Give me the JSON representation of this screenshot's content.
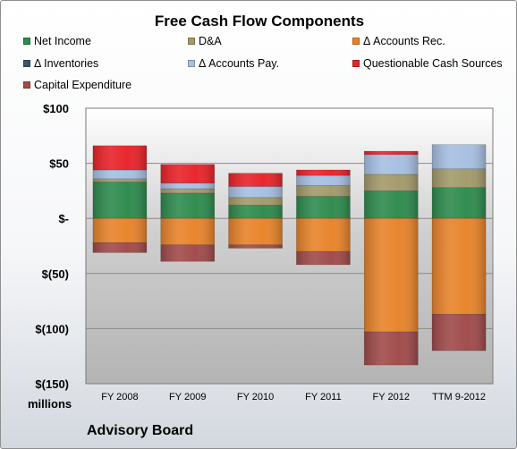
{
  "chart_data": {
    "type": "bar",
    "stacked": true,
    "title": "Free Cash Flow Components",
    "units_label": "millions",
    "watermark": "Advisory Board",
    "categories": [
      "FY 2008",
      "FY 2009",
      "FY 2010",
      "FY 2011",
      "FY 2012",
      "TTM 9-2012"
    ],
    "ylim": [
      -150,
      100
    ],
    "yticks": [
      100,
      50,
      0,
      -50,
      -100,
      -150
    ],
    "ytick_labels": [
      "$100",
      "$50",
      "$-",
      "$(50)",
      "$(100)",
      "$(150)"
    ],
    "grid": true,
    "legend_position": "top",
    "series": [
      {
        "name": "Net Income",
        "color": "#2e8b4e",
        "values": [
          33,
          23,
          12,
          20,
          25,
          28
        ]
      },
      {
        "name": "D&A",
        "color": "#a39a6b",
        "values": [
          3,
          4,
          7,
          10,
          15,
          17
        ]
      },
      {
        "name": "Δ Accounts Rec.",
        "color": "#e8832a",
        "values": [
          -22,
          -24,
          -24,
          -30,
          -103,
          -87
        ]
      },
      {
        "name": "Δ Inventories",
        "color": "#3a5574",
        "values": [
          0,
          0,
          0,
          0,
          0,
          0
        ]
      },
      {
        "name": "Δ Accounts Pay.",
        "color": "#a6bfe2",
        "values": [
          8,
          5,
          10,
          9,
          18,
          22
        ]
      },
      {
        "name": "Questionable Cash Sources",
        "color": "#e8232a",
        "values": [
          22,
          17,
          12,
          5,
          3,
          0
        ]
      },
      {
        "name": "Capital Expenditure",
        "color": "#a04a4a",
        "values": [
          -9,
          -15,
          -3,
          -12,
          -30,
          -33
        ]
      }
    ]
  }
}
